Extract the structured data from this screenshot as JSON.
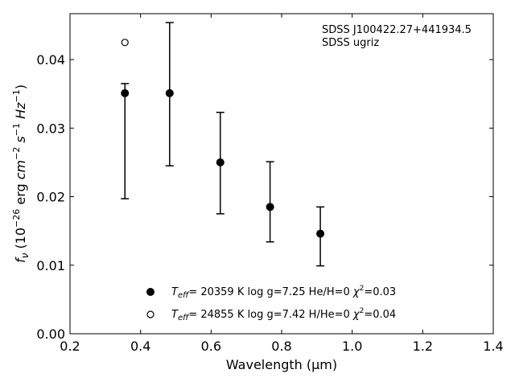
{
  "chart_data": {
    "type": "scatter",
    "title": "",
    "xlabel": "Wavelength (μm)",
    "ylabel_parts": [
      "f",
      "ν",
      " (10",
      "−26",
      " erg ",
      "cm",
      "−2",
      " ",
      "s",
      "−1",
      " ",
      "Hz",
      "−1",
      ")"
    ],
    "xlim": [
      0.2,
      1.4
    ],
    "ylim": [
      0.0,
      0.0467
    ],
    "xticks": [
      0.2,
      0.4,
      0.6,
      0.8,
      1.0,
      1.2,
      1.4
    ],
    "xtick_labels": [
      "0.2",
      "0.4",
      "0.6",
      "0.8",
      "1.0",
      "1.2",
      "1.4"
    ],
    "yticks": [
      0.0,
      0.01,
      0.02,
      0.03,
      0.04
    ],
    "ytick_labels": [
      "0.00",
      "0.01",
      "0.02",
      "0.03",
      "0.04"
    ],
    "grid": false,
    "legend_position": "bottom-center",
    "annotations": [
      "SDSS J100422.27+441934.5",
      "SDSS ugriz"
    ],
    "series": [
      {
        "marker": "filled-circle",
        "points": [
          {
            "x": 0.3557,
            "y": 0.0351,
            "yerr_low": 0.0154,
            "yerr_high": 0.0014
          },
          {
            "x": 0.4825,
            "y": 0.0351,
            "yerr_low": 0.0106,
            "yerr_high": 0.0103
          },
          {
            "x": 0.6261,
            "y": 0.025,
            "yerr_low": 0.0075,
            "yerr_high": 0.0073
          },
          {
            "x": 0.7672,
            "y": 0.0185,
            "yerr_low": 0.0051,
            "yerr_high": 0.0066
          },
          {
            "x": 0.9097,
            "y": 0.0146,
            "yerr_low": 0.0047,
            "yerr_high": 0.0039
          }
        ]
      },
      {
        "marker": "open-circle",
        "points": [
          {
            "x": 0.3557,
            "y": 0.0425
          }
        ]
      }
    ],
    "legend": [
      {
        "marker": "filled-circle",
        "teff_symbol": "T",
        "teff_sub": "eff",
        "text": "= 20359 K  log g=7.25  He/H=0  ",
        "chi_symbol": "χ",
        "chi_sup": "2",
        "chi_text": "=0.03"
      },
      {
        "marker": "open-circle",
        "teff_symbol": "T",
        "teff_sub": "eff",
        "text": "= 24855 K  log g=7.42  H/He=0  ",
        "chi_symbol": "χ",
        "chi_sup": "2",
        "chi_text": "=0.04"
      }
    ]
  }
}
